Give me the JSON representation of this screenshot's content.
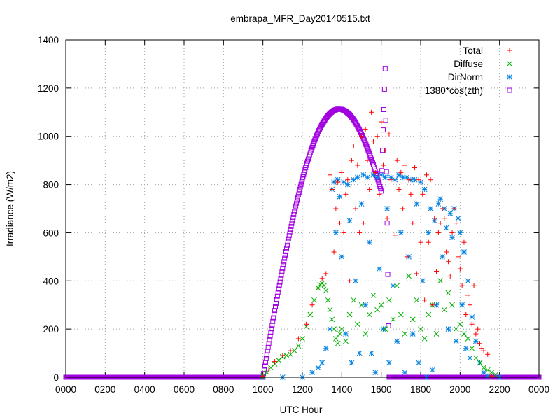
{
  "chart_data": {
    "type": "scatter",
    "title": "embrapa_MFR_Day20140515.txt",
    "xlabel": "UTC Hour",
    "ylabel": "Irradiance (W/m2)",
    "xlim": [
      0,
      24
    ],
    "ylim": [
      0,
      1400
    ],
    "x_ticks": [
      {
        "value": 0,
        "label": "0000"
      },
      {
        "value": 2,
        "label": "0200"
      },
      {
        "value": 4,
        "label": "0400"
      },
      {
        "value": 6,
        "label": "0600"
      },
      {
        "value": 8,
        "label": "0800"
      },
      {
        "value": 10,
        "label": "1000"
      },
      {
        "value": 12,
        "label": "1200"
      },
      {
        "value": 14,
        "label": "1400"
      },
      {
        "value": 16,
        "label": "1600"
      },
      {
        "value": 18,
        "label": "1800"
      },
      {
        "value": 20,
        "label": "2000"
      },
      {
        "value": 22,
        "label": "2200"
      },
      {
        "value": 24,
        "label": "0000"
      }
    ],
    "y_ticks": [
      {
        "value": 0,
        "label": "0"
      },
      {
        "value": 200,
        "label": "200"
      },
      {
        "value": 400,
        "label": "400"
      },
      {
        "value": 600,
        "label": "600"
      },
      {
        "value": 800,
        "label": "800"
      },
      {
        "value": 1000,
        "label": "1000"
      },
      {
        "value": 1200,
        "label": "1200"
      },
      {
        "value": 1400,
        "label": "1400"
      }
    ],
    "grid": true,
    "legend_position": "top-right",
    "series": [
      {
        "name": "Total",
        "marker": "plus",
        "color": "#ff0000",
        "x": [
          10.0,
          10.3,
          10.6,
          11.0,
          11.4,
          11.8,
          12.2,
          12.5,
          12.8,
          13.0,
          13.2,
          13.4,
          13.5,
          13.6,
          13.7,
          13.8,
          13.9,
          14.0,
          14.1,
          14.2,
          14.3,
          14.4,
          14.5,
          14.6,
          14.7,
          14.8,
          14.9,
          15.0,
          15.1,
          15.2,
          15.3,
          15.4,
          15.5,
          15.6,
          15.7,
          15.8,
          15.9,
          16.0,
          16.1,
          16.2,
          16.3,
          16.4,
          16.5,
          16.6,
          16.7,
          16.8,
          16.9,
          17.0,
          17.1,
          17.2,
          17.3,
          17.4,
          17.5,
          17.6,
          17.7,
          17.8,
          17.9,
          18.0,
          18.1,
          18.2,
          18.3,
          18.4,
          18.5,
          18.6,
          18.7,
          18.8,
          18.9,
          19.0,
          19.1,
          19.2,
          19.3,
          19.4,
          19.5,
          19.6,
          19.7,
          19.8,
          19.9,
          20.0,
          20.1,
          20.2,
          20.3,
          20.4,
          20.5,
          20.6,
          20.7,
          20.8,
          20.9,
          21.0,
          21.1,
          21.2,
          21.4,
          21.6
        ],
        "y": [
          5,
          30,
          65,
          90,
          110,
          160,
          220,
          300,
          370,
          410,
          430,
          840,
          780,
          520,
          700,
          810,
          640,
          850,
          600,
          760,
          820,
          400,
          900,
          960,
          700,
          880,
          600,
          1000,
          640,
          1030,
          900,
          780,
          1100,
          980,
          850,
          1000,
          760,
          1060,
          880,
          940,
          660,
          1010,
          820,
          960,
          590,
          900,
          780,
          850,
          700,
          880,
          500,
          820,
          760,
          640,
          870,
          430,
          820,
          560,
          760,
          320,
          840,
          560,
          820,
          300,
          660,
          440,
          600,
          640,
          700,
          660,
          520,
          480,
          420,
          600,
          700,
          640,
          500,
          450,
          380,
          560,
          260,
          340,
          300,
          220,
          380,
          180,
          200,
          140,
          120,
          110,
          95,
          5
        ]
      },
      {
        "name": "Diffuse",
        "marker": "cross",
        "color": "#00b000",
        "x": [
          10.0,
          10.2,
          10.4,
          10.6,
          10.8,
          11.0,
          11.2,
          11.4,
          11.6,
          11.8,
          12.0,
          12.2,
          12.4,
          12.6,
          12.8,
          12.9,
          13.0,
          13.1,
          13.2,
          13.3,
          13.4,
          13.5,
          13.6,
          13.7,
          13.8,
          13.9,
          14.0,
          14.2,
          14.4,
          14.6,
          14.8,
          15.0,
          15.2,
          15.4,
          15.6,
          15.8,
          16.0,
          16.2,
          16.4,
          16.6,
          16.8,
          17.0,
          17.2,
          17.4,
          17.6,
          17.8,
          18.0,
          18.2,
          18.4,
          18.6,
          18.8,
          19.0,
          19.2,
          19.4,
          19.6,
          19.8,
          20.0,
          20.2,
          20.4,
          20.6,
          20.8,
          21.0,
          21.2,
          21.4,
          21.6,
          21.8
        ],
        "y": [
          5,
          20,
          40,
          55,
          70,
          85,
          90,
          95,
          110,
          130,
          160,
          210,
          260,
          320,
          370,
          385,
          390,
          380,
          360,
          320,
          280,
          240,
          200,
          160,
          140,
          180,
          200,
          150,
          260,
          320,
          220,
          300,
          180,
          260,
          340,
          280,
          300,
          200,
          320,
          240,
          380,
          260,
          180,
          420,
          240,
          320,
          200,
          160,
          260,
          300,
          180,
          400,
          280,
          350,
          300,
          200,
          220,
          180,
          160,
          120,
          80,
          60,
          40,
          30,
          20,
          10
        ]
      },
      {
        "name": "DirNorm",
        "marker": "star",
        "color": "#0080e0",
        "x": [
          10.0,
          11.0,
          12.0,
          12.5,
          12.8,
          13.0,
          13.2,
          13.4,
          13.5,
          13.6,
          13.7,
          13.8,
          13.9,
          14.0,
          14.1,
          14.2,
          14.3,
          14.4,
          14.5,
          14.6,
          14.7,
          14.8,
          14.9,
          15.0,
          15.1,
          15.2,
          15.3,
          15.4,
          15.5,
          15.6,
          15.7,
          15.8,
          15.9,
          16.0,
          16.1,
          16.2,
          16.3,
          16.4,
          16.5,
          16.6,
          16.7,
          16.8,
          16.9,
          17.0,
          17.1,
          17.2,
          17.3,
          17.4,
          17.5,
          17.6,
          17.7,
          17.8,
          17.9,
          18.0,
          18.1,
          18.2,
          18.3,
          18.4,
          18.5,
          18.6,
          18.7,
          18.8,
          18.9,
          19.0,
          19.1,
          19.2,
          19.3,
          19.4,
          19.5,
          19.6,
          19.7,
          19.8,
          19.9,
          20.0,
          20.1,
          20.2,
          20.3,
          20.4,
          20.5,
          20.6,
          20.8,
          21.0,
          21.2,
          21.4,
          22.0
        ],
        "y": [
          0,
          0,
          0,
          20,
          40,
          60,
          120,
          200,
          780,
          810,
          600,
          820,
          750,
          500,
          810,
          180,
          800,
          650,
          60,
          820,
          400,
          830,
          100,
          720,
          840,
          300,
          830,
          560,
          100,
          840,
          20,
          830,
          450,
          840,
          200,
          830,
          700,
          60,
          830,
          380,
          820,
          150,
          840,
          600,
          830,
          20,
          830,
          500,
          820,
          180,
          820,
          720,
          60,
          810,
          400,
          780,
          0,
          600,
          700,
          30,
          650,
          300,
          720,
          740,
          500,
          700,
          620,
          200,
          680,
          580,
          700,
          150,
          660,
          600,
          300,
          520,
          120,
          400,
          80,
          250,
          150,
          60,
          20,
          5,
          0
        ]
      },
      {
        "name": "1380*cos(zth)",
        "marker": "square",
        "color": "#a000e0",
        "function": "1380*cos(zth)",
        "x": [
          0,
          2,
          4,
          6,
          8,
          10.0,
          10.2,
          10.4,
          10.6,
          10.8,
          11.0,
          11.2,
          11.4,
          11.6,
          11.8,
          12.0,
          12.2,
          12.4,
          12.6,
          12.8,
          13.0,
          13.2,
          13.4,
          13.6,
          13.8,
          14.0,
          14.2,
          14.4,
          14.6,
          14.8,
          15.0,
          15.2,
          15.4,
          15.6,
          15.8,
          16.0,
          16.2,
          16.4,
          16.6,
          16.8,
          17.0,
          17.2,
          17.4,
          17.6,
          17.8,
          18.0,
          18.2,
          18.4,
          18.6,
          18.8,
          19.0,
          19.2,
          19.4,
          19.6,
          19.8,
          20.0,
          20.2,
          20.4,
          20.6,
          20.8,
          21.0,
          21.2,
          21.4,
          21.6,
          21.8,
          22.0,
          22.2,
          23,
          24
        ],
        "y": [
          0,
          0,
          0,
          0,
          0,
          0,
          93,
          186,
          277,
          366,
          452,
          535,
          614,
          688,
          758,
          822,
          880,
          932,
          978,
          1018,
          1050,
          1076,
          1095,
          1108,
          1113,
          1112,
          1104,
          1090,
          1069,
          1042,
          1010,
          972,
          929,
          882,
          829,
          773,
          1280,
          0,
          0,
          0,
          0,
          0,
          0,
          0,
          0,
          0,
          0,
          0,
          0,
          0,
          0,
          0,
          0,
          0,
          0,
          0,
          0,
          0,
          0,
          0,
          0,
          0,
          0,
          0,
          0,
          0,
          0,
          0,
          0
        ]
      }
    ]
  }
}
